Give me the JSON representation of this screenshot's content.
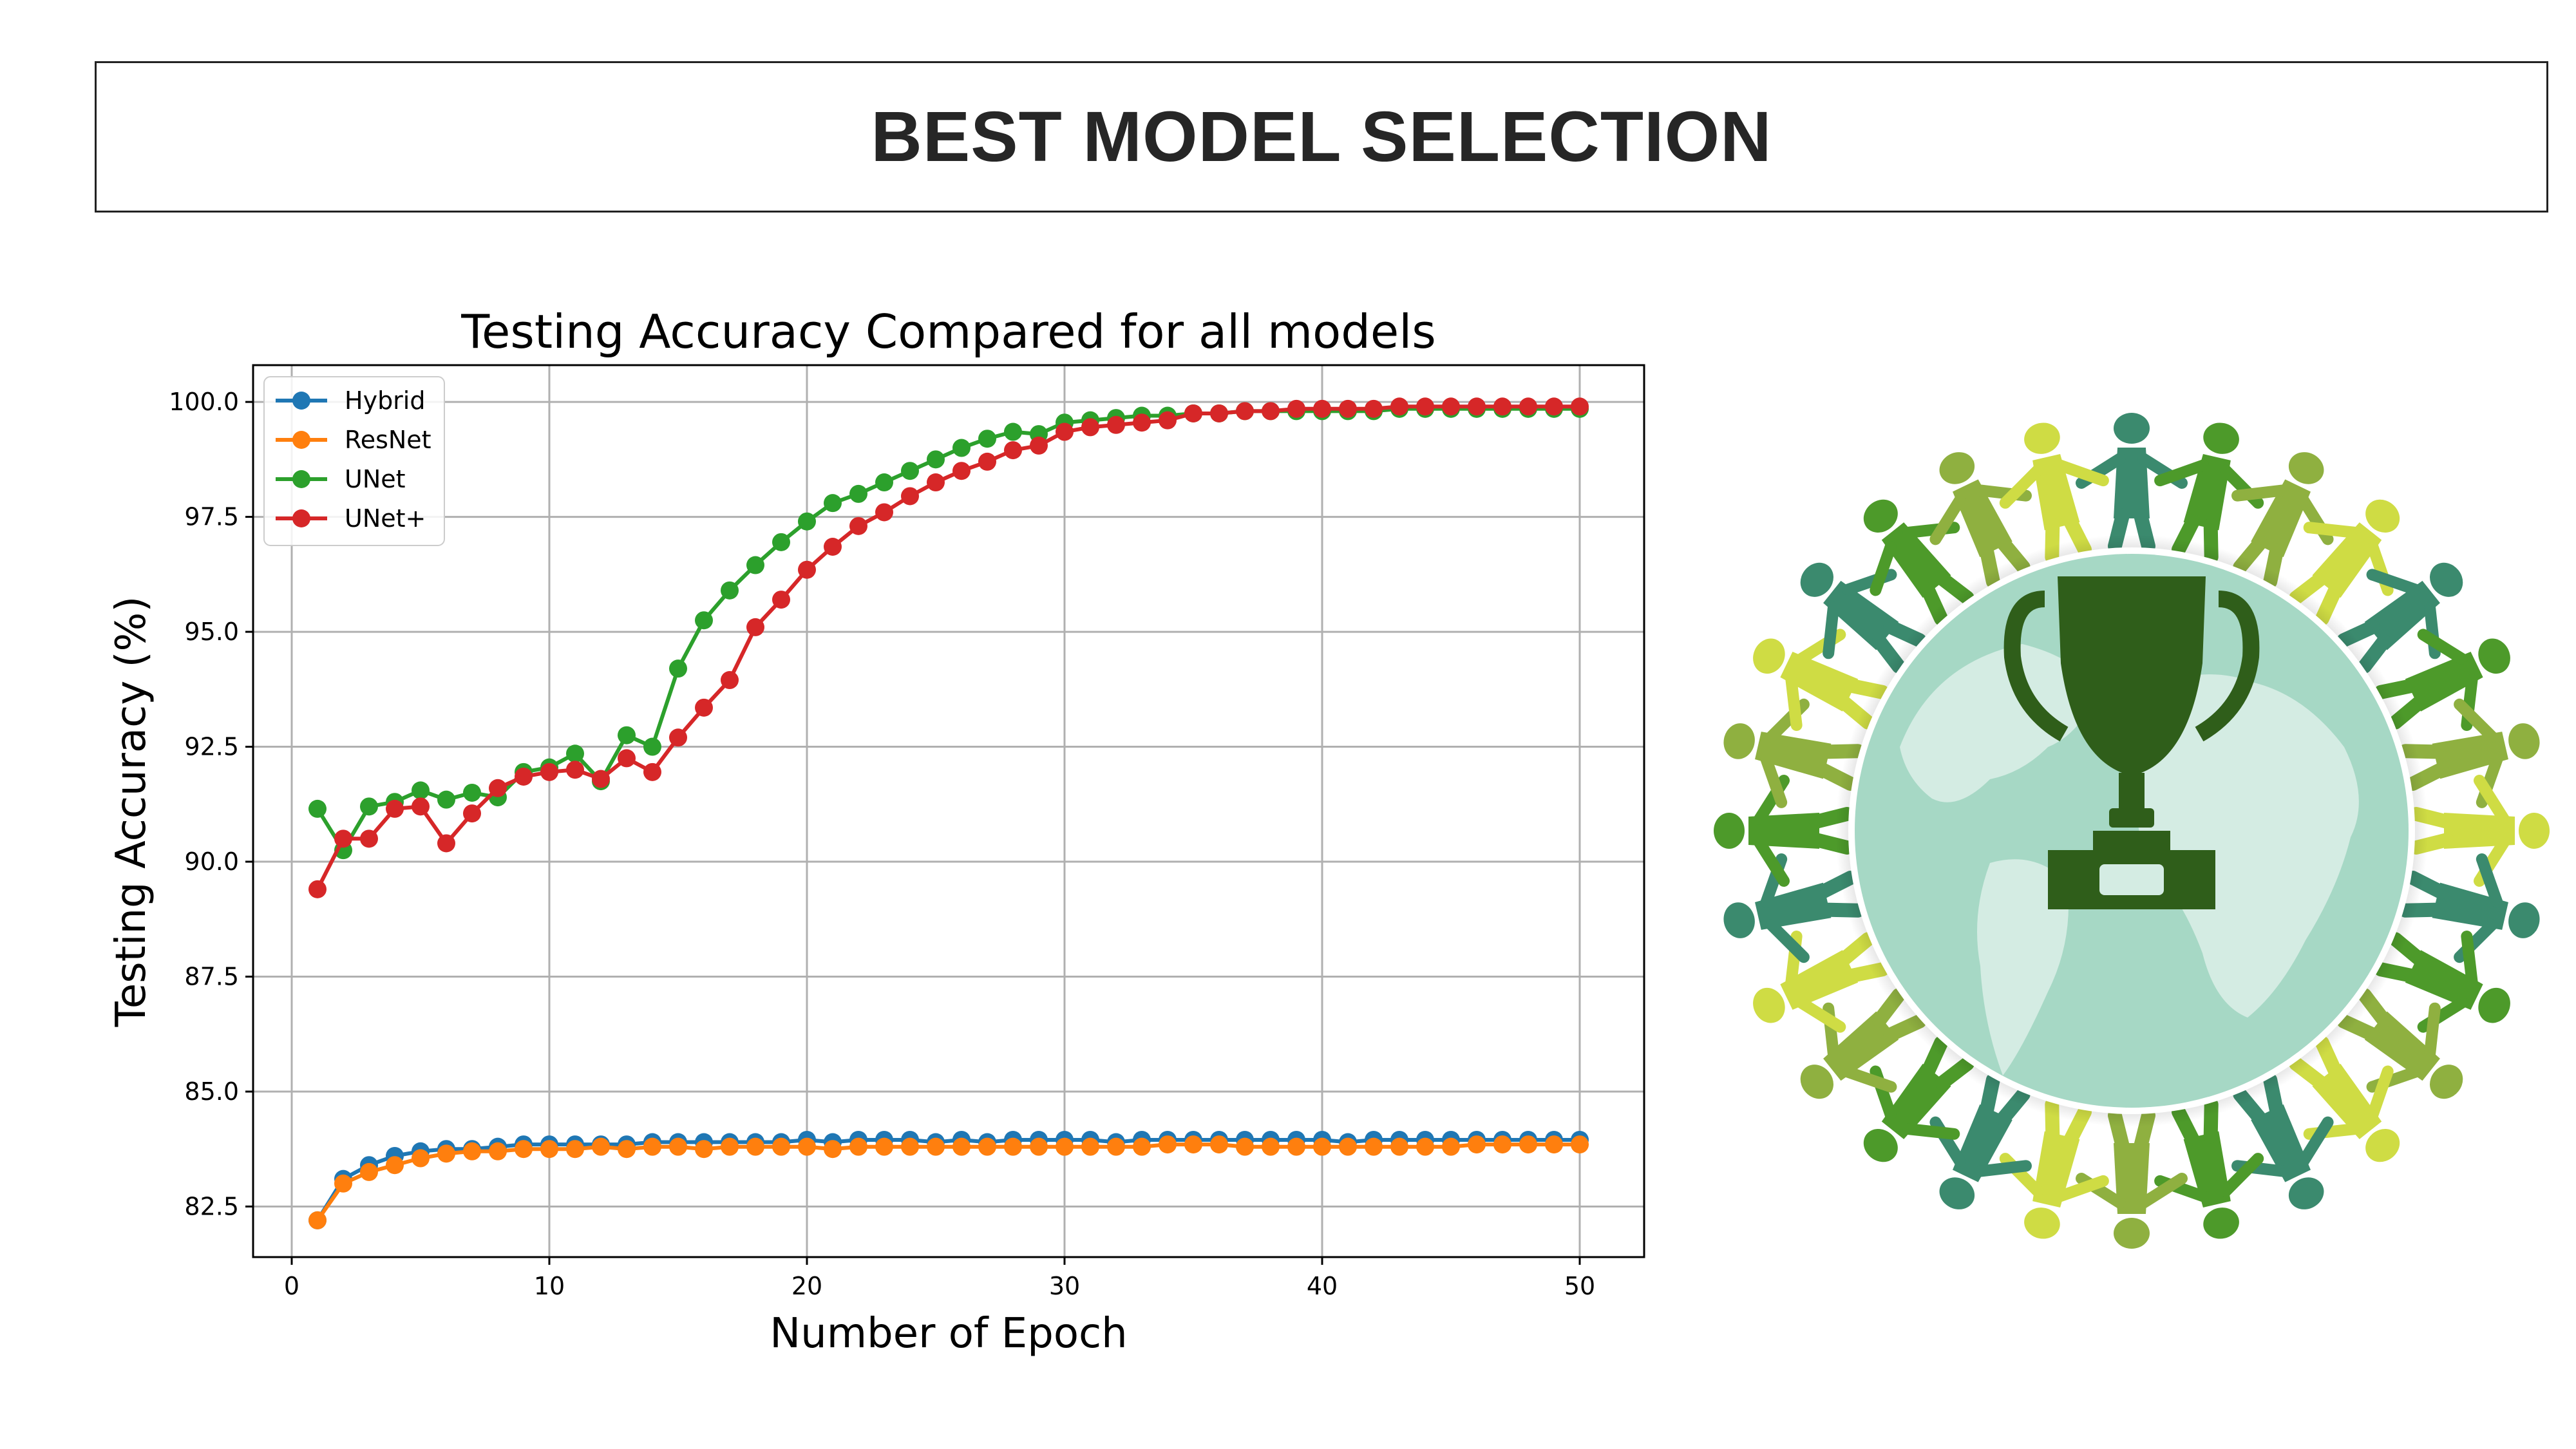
{
  "slide": {
    "title": "BEST MODEL SELECTION"
  },
  "chart_data": {
    "type": "line",
    "title": "Testing Accuracy Compared for all models",
    "xlabel": "Number of Epoch",
    "ylabel": "Testing Accuracy (%)",
    "xlim": [
      -1.5,
      52.5
    ],
    "ylim": [
      81.4,
      100.8
    ],
    "xticks": [
      0,
      10,
      20,
      30,
      40,
      50
    ],
    "yticks": [
      82.5,
      85.0,
      87.5,
      90.0,
      92.5,
      95.0,
      97.5,
      100.0
    ],
    "grid": true,
    "legend_position": "upper-left",
    "x": [
      1,
      2,
      3,
      4,
      5,
      6,
      7,
      8,
      9,
      10,
      11,
      12,
      13,
      14,
      15,
      16,
      17,
      18,
      19,
      20,
      21,
      22,
      23,
      24,
      25,
      26,
      27,
      28,
      29,
      30,
      31,
      32,
      33,
      34,
      35,
      36,
      37,
      38,
      39,
      40,
      41,
      42,
      43,
      44,
      45,
      46,
      47,
      48,
      49,
      50
    ],
    "series": [
      {
        "name": "Hybrid",
        "color": "#1f77b4",
        "values": [
          82.2,
          83.1,
          83.4,
          83.6,
          83.7,
          83.75,
          83.75,
          83.8,
          83.85,
          83.85,
          83.85,
          83.85,
          83.85,
          83.9,
          83.9,
          83.9,
          83.9,
          83.9,
          83.9,
          83.95,
          83.9,
          83.95,
          83.95,
          83.95,
          83.9,
          83.95,
          83.9,
          83.95,
          83.95,
          83.95,
          83.95,
          83.9,
          83.95,
          83.95,
          83.95,
          83.95,
          83.95,
          83.95,
          83.95,
          83.95,
          83.9,
          83.95,
          83.95,
          83.95,
          83.95,
          83.95,
          83.95,
          83.95,
          83.95,
          83.95
        ]
      },
      {
        "name": "ResNet",
        "color": "#ff7f0e",
        "values": [
          82.2,
          83.0,
          83.25,
          83.4,
          83.55,
          83.65,
          83.7,
          83.7,
          83.75,
          83.75,
          83.75,
          83.8,
          83.75,
          83.8,
          83.8,
          83.75,
          83.8,
          83.8,
          83.8,
          83.8,
          83.75,
          83.8,
          83.8,
          83.8,
          83.8,
          83.8,
          83.8,
          83.8,
          83.8,
          83.8,
          83.8,
          83.8,
          83.8,
          83.85,
          83.85,
          83.85,
          83.8,
          83.8,
          83.8,
          83.8,
          83.8,
          83.8,
          83.8,
          83.8,
          83.8,
          83.85,
          83.85,
          83.85,
          83.85,
          83.85
        ]
      },
      {
        "name": "UNet",
        "color": "#2ca02c",
        "values": [
          91.15,
          90.25,
          91.2,
          91.3,
          91.55,
          91.35,
          91.5,
          91.4,
          91.95,
          92.05,
          92.35,
          91.75,
          92.75,
          92.5,
          94.2,
          95.25,
          95.9,
          96.45,
          96.95,
          97.4,
          97.8,
          98.0,
          98.25,
          98.5,
          98.75,
          99.0,
          99.2,
          99.35,
          99.3,
          99.55,
          99.6,
          99.65,
          99.7,
          99.7,
          99.75,
          99.75,
          99.8,
          99.8,
          99.8,
          99.8,
          99.8,
          99.8,
          99.85,
          99.85,
          99.85,
          99.85,
          99.85,
          99.85,
          99.85,
          99.85
        ]
      },
      {
        "name": "UNet+",
        "color": "#d62728",
        "values": [
          89.4,
          90.5,
          90.5,
          91.15,
          91.2,
          90.4,
          91.05,
          91.6,
          91.85,
          91.95,
          92.0,
          91.8,
          92.25,
          91.95,
          92.7,
          93.35,
          93.95,
          95.1,
          95.7,
          96.35,
          96.85,
          97.3,
          97.6,
          97.95,
          98.25,
          98.5,
          98.7,
          98.95,
          99.05,
          99.35,
          99.45,
          99.5,
          99.55,
          99.6,
          99.75,
          99.75,
          99.8,
          99.8,
          99.85,
          99.85,
          99.85,
          99.85,
          99.9,
          99.9,
          99.9,
          99.9,
          99.9,
          99.9,
          99.9,
          99.9
        ]
      }
    ]
  },
  "emblem": {
    "icon": "trophy-globe-people-ring-icon",
    "colors": [
      "#3b8a6e",
      "#4d9a2a",
      "#8fb040",
      "#cfdc44"
    ],
    "globe_color": "#a6d8c5",
    "trophy_color": "#2f5e1a"
  }
}
